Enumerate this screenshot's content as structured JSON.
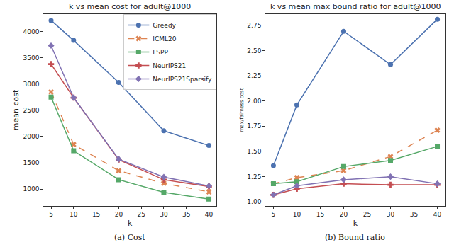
{
  "chart_data": [
    {
      "type": "line",
      "title": "k vs mean cost for adult@1000",
      "caption": "(a) Cost",
      "x_label": "k",
      "y_label": "mean cost",
      "x": [
        5,
        10,
        20,
        30,
        40
      ],
      "series": [
        {
          "name": "Greedy",
          "color": "#4c72b0",
          "marker": "circle",
          "line_style": "solid",
          "values": [
            4210,
            3830,
            3030,
            2110,
            1830
          ]
        },
        {
          "name": "ICML20",
          "color": "#dd8452",
          "marker": "x",
          "line_style": "dash",
          "values": [
            2850,
            1850,
            1350,
            1110,
            950
          ]
        },
        {
          "name": "LSPP",
          "color": "#55a868",
          "marker": "square",
          "line_style": "solid",
          "values": [
            2750,
            1730,
            1180,
            940,
            810
          ]
        },
        {
          "name": "NeurIPS21",
          "color": "#c44e52",
          "marker": "cross",
          "line_style": "solid",
          "values": [
            3380,
            2740,
            1560,
            1180,
            1050
          ]
        },
        {
          "name": "NeurIPS21Sparsify",
          "color": "#8172b3",
          "marker": "diamond",
          "line_style": "solid",
          "values": [
            3730,
            2740,
            1570,
            1230,
            1060
          ]
        }
      ],
      "xlim": [
        3.3,
        41.7
      ],
      "xticks": [
        5,
        10,
        15,
        20,
        25,
        30,
        35,
        40
      ],
      "ylim": [
        680,
        4330
      ],
      "yticks": [
        1000,
        1500,
        2000,
        2500,
        3000,
        3500,
        4000
      ],
      "grid": false,
      "legend": "upper right"
    },
    {
      "type": "line",
      "title": "k vs mean max bound ratio for adult@1000",
      "caption": "(b) Bound ratio",
      "x_label": "k",
      "y_label": "max/fairness cost",
      "x": [
        5,
        10,
        20,
        30,
        40
      ],
      "series": [
        {
          "name": "Greedy",
          "color": "#4c72b0",
          "marker": "circle",
          "line_style": "solid",
          "values": [
            1.36,
            1.96,
            2.69,
            2.36,
            2.81
          ]
        },
        {
          "name": "ICML20",
          "color": "#dd8452",
          "marker": "x",
          "line_style": "dash",
          "values": [
            1.18,
            1.24,
            1.31,
            1.45,
            1.71
          ]
        },
        {
          "name": "LSPP",
          "color": "#55a868",
          "marker": "square",
          "line_style": "solid",
          "values": [
            1.18,
            1.2,
            1.35,
            1.41,
            1.55
          ]
        },
        {
          "name": "NeurIPS21",
          "color": "#c44e52",
          "marker": "cross",
          "line_style": "solid",
          "values": [
            1.07,
            1.13,
            1.18,
            1.17,
            1.17
          ]
        },
        {
          "name": "NeurIPS21Sparsify",
          "color": "#8172b3",
          "marker": "diamond",
          "line_style": "solid",
          "values": [
            1.07,
            1.16,
            1.22,
            1.25,
            1.18
          ]
        }
      ],
      "xlim": [
        3.3,
        41.7
      ],
      "xticks": [
        5,
        10,
        15,
        20,
        25,
        30,
        35,
        40
      ],
      "ylim": [
        0.96,
        2.86
      ],
      "yticks": [
        {
          "value": 1,
          "label": "1.00"
        },
        {
          "value": 1.25,
          "label": "1.25"
        },
        {
          "value": 1.5,
          "label": "1.50"
        },
        {
          "value": 1.75,
          "label": "1.75"
        },
        {
          "value": 2,
          "label": "2.00"
        },
        {
          "value": 2.25,
          "label": "2.25"
        },
        {
          "value": 2.5,
          "label": "2.50"
        },
        {
          "value": 2.75,
          "label": "2.75"
        }
      ],
      "grid": false
    }
  ]
}
